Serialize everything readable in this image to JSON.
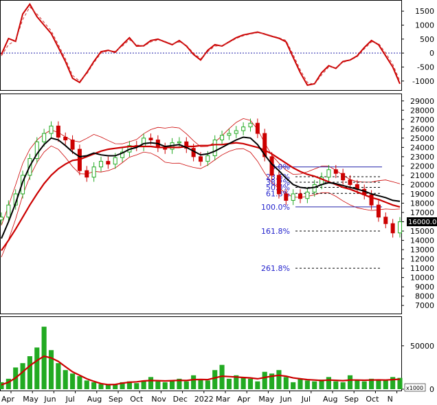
{
  "colors": {
    "background": "#ffffff",
    "frame": "#000000",
    "up_candle": "#22aa22",
    "down_candle": "#cc0000",
    "ma_slow": "#cc0000",
    "ma_fast": "#000000",
    "bands": "#cc0000",
    "fib_text": "#2222cc",
    "volume": "#22aa22",
    "last_price_bg": "#000000",
    "last_price_fg": "#ffffff"
  },
  "chart_data": [
    {
      "type": "line",
      "panel": "oscillator",
      "y_ticks": [
        "1500",
        "1000",
        "500",
        "0",
        "-500",
        "-1000"
      ],
      "ylim": [
        -1250,
        1800
      ],
      "zero_line": true,
      "series": [
        {
          "style": "solid",
          "values": [
            -50,
            520,
            420,
            1400,
            1750,
            1300,
            1000,
            700,
            200,
            -300,
            -900,
            -1050,
            -700,
            -300,
            50,
            100,
            30,
            300,
            550,
            250,
            260,
            450,
            500,
            400,
            300,
            450,
            250,
            -50,
            -250,
            100,
            300,
            250,
            400,
            550,
            650,
            700,
            750,
            680,
            600,
            530,
            400,
            -150,
            -700,
            -1150,
            -1100,
            -700,
            -450,
            -550,
            -300,
            -250,
            -100,
            200,
            450,
            300,
            -100,
            -500,
            -1100
          ]
        },
        {
          "style": "dashed",
          "values": [
            -100,
            300,
            450,
            1200,
            1650,
            1400,
            1100,
            800,
            300,
            -200,
            -800,
            -1000,
            -750,
            -350,
            0,
            80,
            60,
            250,
            480,
            300,
            240,
            400,
            470,
            420,
            320,
            400,
            280,
            0,
            -200,
            50,
            250,
            270,
            380,
            520,
            620,
            680,
            730,
            690,
            620,
            550,
            450,
            -50,
            -600,
            -1050,
            -1120,
            -780,
            -500,
            -520,
            -330,
            -260,
            -130,
            150,
            400,
            350,
            0,
            -400,
            -1000
          ]
        }
      ]
    },
    {
      "type": "candlestick",
      "panel": "price",
      "y_ticks": [
        "29000",
        "28000",
        "27000",
        "26000",
        "25000",
        "24000",
        "23000",
        "22000",
        "21000",
        "20000",
        "19000",
        "18000",
        "17000",
        "16000",
        "15000",
        "14000",
        "13000",
        "12000",
        "11000",
        "10000",
        "9000",
        "8000",
        "7000"
      ],
      "ylim": [
        6200,
        29500
      ],
      "close_values": [
        16500,
        17800,
        19000,
        21000,
        22800,
        24600,
        25500,
        26300,
        25100,
        24800,
        23800,
        21500,
        20800,
        21900,
        22500,
        22200,
        22900,
        23500,
        24200,
        24100,
        25000,
        24800,
        24000,
        23800,
        24500,
        24600,
        23900,
        23000,
        22500,
        23100,
        24800,
        25300,
        25500,
        25800,
        26200,
        26600,
        25500,
        23000,
        21000,
        19000,
        18300,
        19000,
        18500,
        19200,
        20000,
        20800,
        21600,
        21200,
        20500,
        20000,
        19500,
        18900,
        17800,
        16500,
        15800,
        14800,
        16000
      ],
      "ma_slow": [
        12900,
        14000,
        15200,
        16500,
        17800,
        19000,
        20100,
        21000,
        21700,
        22200,
        22600,
        22700,
        23000,
        23300,
        23600,
        23800,
        23900,
        24000,
        24100,
        24100,
        24100,
        24100,
        24000,
        24000,
        24000,
        24000,
        24100,
        24100,
        24200,
        24200,
        24300,
        24300,
        24400,
        24500,
        24400,
        24200,
        24000,
        23700,
        23300,
        22800,
        22300,
        21800,
        21400,
        21100,
        20900,
        20600,
        20300,
        20000,
        19700,
        19500,
        19200,
        18900,
        18600,
        18400,
        18100,
        17800,
        17600
      ],
      "ma_fast": [
        14200,
        16000,
        18000,
        20300,
        22000,
        23300,
        24300,
        25000,
        24800,
        24200,
        23500,
        23000,
        23100,
        23400,
        23200,
        23100,
        23100,
        23400,
        23800,
        24000,
        24400,
        24500,
        24400,
        24100,
        24200,
        24300,
        24000,
        23600,
        23200,
        23300,
        23600,
        24000,
        24400,
        24800,
        25100,
        25000,
        24300,
        23200,
        22200,
        21500,
        20700,
        20000,
        19700,
        19600,
        19700,
        20000,
        20200,
        20100,
        19900,
        19700,
        19500,
        19300,
        19000,
        18800,
        18600,
        18300,
        18200
      ],
      "last_price_label": "16000.00",
      "fib_labels": [
        "0.0%",
        "23.6%",
        "38.2%",
        "50.0%",
        "61.8%",
        "100.0%",
        "161.8%",
        "261.8%"
      ],
      "fib_levels": [
        21900,
        20850,
        20250,
        19700,
        19050,
        17600,
        15000,
        11000
      ]
    },
    {
      "type": "bar",
      "panel": "volume",
      "y_ticks": [
        "50000",
        "0"
      ],
      "ylim": [
        0,
        80000
      ],
      "unit_label": "x1000",
      "values": [
        8000,
        12000,
        25000,
        30000,
        38000,
        48000,
        72000,
        45000,
        30000,
        22000,
        18000,
        15000,
        10000,
        8000,
        6000,
        5000,
        6000,
        8000,
        9000,
        7000,
        10000,
        14000,
        9000,
        8000,
        10000,
        12000,
        9000,
        16000,
        11000,
        10000,
        22000,
        28000,
        12000,
        16000,
        14000,
        12000,
        9000,
        20000,
        18000,
        22000,
        14000,
        8000,
        12000,
        10000,
        9000,
        11000,
        14000,
        9000,
        8000,
        16000,
        10000,
        9000,
        12000,
        11000,
        10000,
        14000,
        13000
      ],
      "ma_values": [
        5000,
        8000,
        13000,
        20000,
        27000,
        33000,
        38000,
        36000,
        32000,
        26000,
        20000,
        16000,
        12000,
        9000,
        6500,
        5200,
        5500,
        7000,
        8000,
        8500,
        9500,
        10000,
        9800,
        9500,
        9800,
        10200,
        10000,
        11000,
        11200,
        11000,
        13000,
        15000,
        14500,
        14000,
        13500,
        13000,
        12000,
        13500,
        15000,
        16000,
        15000,
        13000,
        12000,
        11000,
        10500,
        10000,
        10500,
        10200,
        9800,
        10500,
        10500,
        10300,
        10500,
        10700,
        10500,
        11000,
        11500
      ]
    }
  ],
  "x_axis": {
    "labels": [
      "Apr",
      "May",
      "Jun",
      "Jul",
      "Aug",
      "Sep",
      "Oct",
      "Nov",
      "Dec",
      "2022",
      "Mar",
      "Apr",
      "May",
      "Jun",
      "Jul",
      "Aug",
      "Sep",
      "Oct",
      "N"
    ]
  }
}
